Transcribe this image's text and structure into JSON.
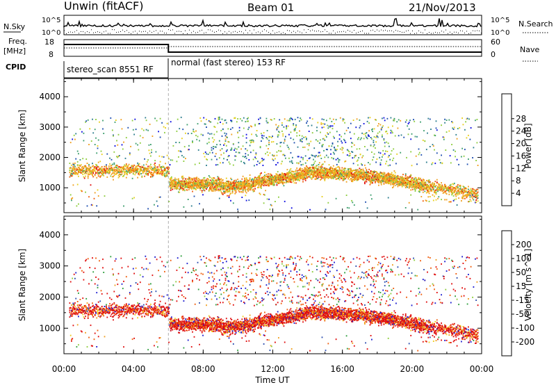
{
  "header": {
    "title": "Unwin (fitACF)",
    "beam": "Beam 01",
    "date": "21/Nov/2013"
  },
  "panel_labels": {
    "nsky": "N.Sky",
    "freq": "Freq.",
    "freq_unit": "[MHz]",
    "cpid": "CPID",
    "nsearch": "N.Search",
    "nave": "Nave",
    "nsky_top": "10^5",
    "nsky_bottom": "10^0",
    "freq_top": "18",
    "freq_bottom": "8",
    "nave_top": "60",
    "nave_bottom": "0"
  },
  "cpid_modes": [
    {
      "label": "stereo_scan 8551 RF",
      "start_hour": 0,
      "end_hour": 6
    },
    {
      "label": "normal (fast stereo) 153 RF",
      "start_hour": 6,
      "end_hour": 24
    }
  ],
  "chart_data": [
    {
      "type": "heatmap",
      "title": "",
      "xlabel": "Time UT",
      "ylabel": "Slant Range [km]",
      "x_ticks": [
        "00:00",
        "04:00",
        "08:00",
        "12:00",
        "16:00",
        "20:00",
        "00:00"
      ],
      "x_range_hours": [
        0,
        24
      ],
      "y_ticks": [
        1000,
        2000,
        3000,
        4000
      ],
      "y_range_km": [
        180,
        4600
      ],
      "colorbar": {
        "label": "Power [dB]",
        "ticks": [
          4,
          8,
          12,
          16,
          20,
          24,
          28
        ],
        "range": [
          0,
          32
        ],
        "colors": [
          "#1010e0",
          "#1f4fb0",
          "#2f7f8f",
          "#40a070",
          "#8fce40",
          "#e8d020",
          "#f0a020",
          "#f06010",
          "#e01010"
        ]
      }
    },
    {
      "type": "heatmap",
      "title": "",
      "xlabel": "Time UT",
      "ylabel": "Slant Range [km]",
      "x_ticks": [
        "00:00",
        "04:00",
        "08:00",
        "12:00",
        "16:00",
        "20:00",
        "00:00"
      ],
      "x_range_hours": [
        0,
        24
      ],
      "y_ticks": [
        1000,
        2000,
        3000,
        4000
      ],
      "y_range_km": [
        180,
        4600
      ],
      "colorbar": {
        "label": "Velocity [m s^-1]",
        "ticks": [
          200,
          100,
          50,
          15,
          -15,
          -50,
          -100,
          -200
        ],
        "colors": [
          "#2020d0",
          "#2f50b0",
          "#30a040",
          "#8fce40",
          "#c0c0c0",
          "#f0d020",
          "#f0a020",
          "#f06010",
          "#e01010"
        ]
      }
    }
  ]
}
